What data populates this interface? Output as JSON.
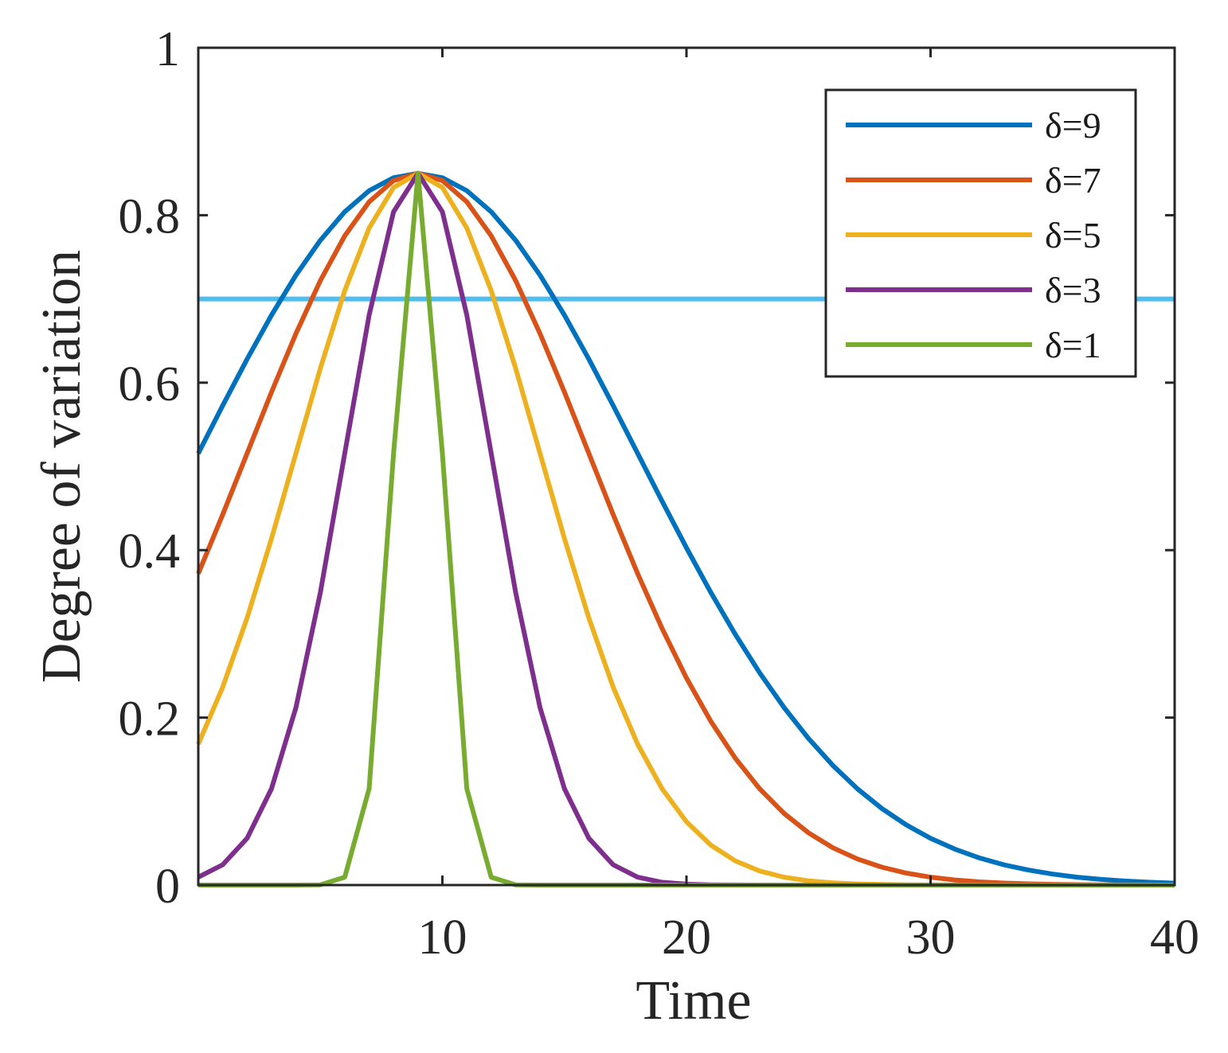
{
  "chart_data": {
    "type": "line",
    "title": "",
    "xlabel": "Time",
    "ylabel": "Degree of variation",
    "xlim": [
      0,
      40
    ],
    "ylim": [
      0,
      1
    ],
    "xticks": [
      10,
      20,
      30,
      40
    ],
    "xtick_labels": [
      "10",
      "20",
      "30",
      "40"
    ],
    "yticks": [
      0,
      0.2,
      0.4,
      0.6,
      0.8,
      1
    ],
    "ytick_labels": [
      "0",
      "0.2",
      "0.4",
      "0.6",
      "0.8",
      "1"
    ],
    "grid": false,
    "legend_position": "top-right",
    "peak": {
      "x": 9,
      "y": 0.85
    },
    "x_start": 0,
    "x_end": 40,
    "series": [
      {
        "name": "δ=9",
        "label": "δ=9",
        "delta": 9,
        "color": "#0072BD"
      },
      {
        "name": "δ=7",
        "label": "δ=7",
        "delta": 7,
        "color": "#D95319"
      },
      {
        "name": "δ=5",
        "label": "δ=5",
        "delta": 5,
        "color": "#EDB120"
      },
      {
        "name": "δ=3",
        "label": "δ=3",
        "delta": 3,
        "color": "#7E2F8E"
      },
      {
        "name": "δ=1",
        "label": "δ=1",
        "delta": 1,
        "color": "#77AC30"
      }
    ],
    "threshold": {
      "y": 0.7,
      "color": "#4DBEEE"
    }
  }
}
